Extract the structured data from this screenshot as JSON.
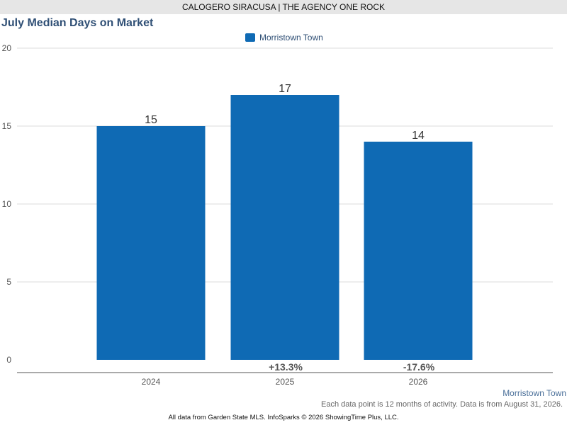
{
  "header": {
    "banner": "CALOGERO SIRACUSA | THE AGENCY ONE ROCK"
  },
  "chart_data": {
    "type": "bar",
    "title": "July Median Days on Market",
    "categories": [
      "2024",
      "2025",
      "2026"
    ],
    "series": [
      {
        "name": "Morristown Town",
        "values": [
          15,
          17,
          14
        ]
      }
    ],
    "value_labels": [
      "15",
      "17",
      "14"
    ],
    "changes": [
      "",
      "+13.3%",
      "-17.6%"
    ],
    "ylim": [
      0,
      20
    ],
    "yticks": [
      0,
      5,
      10,
      15,
      20
    ],
    "grid": true,
    "legend": "top-center",
    "xlabel": "",
    "ylabel": "",
    "bar_color": "#0f6ab4"
  },
  "footer": {
    "area_link": "Morristown Town",
    "note": "Each data point is 12 months of activity. Data is from August 31, 2026.",
    "copyright": "All data from Garden State MLS. InfoSparks © 2026 ShowingTime Plus, LLC."
  }
}
